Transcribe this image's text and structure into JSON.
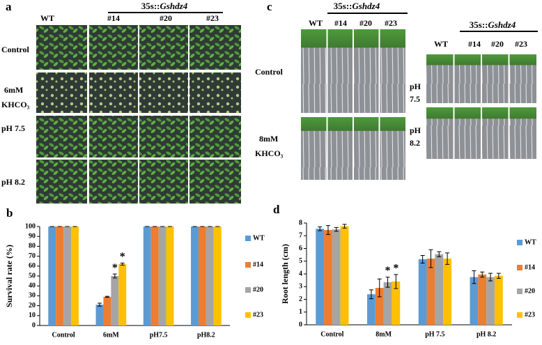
{
  "panel_a": {
    "label": "a",
    "header_prefix": "35s::",
    "header_gene": "Gshdz4",
    "columns": [
      "WT",
      "#14",
      "#20",
      "#23"
    ],
    "rows": [
      [
        "Control"
      ],
      [
        "6mM",
        "KHCO₃"
      ],
      [
        "pH 7.5"
      ],
      [
        "pH 8.2"
      ]
    ]
  },
  "panel_c": {
    "label": "c",
    "header_prefix": "35s::",
    "header_gene": "Gshdz4",
    "columns": [
      "WT",
      "#14",
      "#20",
      "#23"
    ],
    "rows": [
      [
        "Control"
      ],
      [
        "8mM",
        "KHCO₃"
      ]
    ],
    "right": {
      "header_prefix": "35s::",
      "header_gene": "Gshdz4",
      "columns": [
        "WT",
        "#14",
        "#20",
        "#23"
      ],
      "rows": [
        [
          "pH",
          "7.5"
        ],
        [
          "pH",
          "8.2"
        ]
      ]
    }
  },
  "chart_data": [
    {
      "type": "bar",
      "panel_label": "b",
      "y_label": "Survival rate (%)",
      "categories": [
        "Control",
        "6mM",
        "pH7.5",
        "pH8.2"
      ],
      "series": [
        {
          "name": "WT",
          "color": "#5b9bd5",
          "values": [
            100,
            21,
            100,
            100
          ],
          "errors": [
            0,
            1.5,
            0,
            0
          ]
        },
        {
          "name": "#14",
          "color": "#ed7d31",
          "values": [
            100,
            29,
            100,
            100
          ],
          "errors": [
            0,
            0.5,
            0,
            0
          ]
        },
        {
          "name": "#20",
          "color": "#a5a5a5",
          "values": [
            100,
            50,
            100,
            100
          ],
          "errors": [
            0,
            2,
            0,
            0
          ]
        },
        {
          "name": "#23",
          "color": "#ffc000",
          "values": [
            100,
            62,
            100,
            100
          ],
          "errors": [
            0,
            1,
            0,
            0
          ]
        }
      ],
      "ylim": [
        0,
        100
      ],
      "yticks": [
        0,
        10,
        20,
        30,
        40,
        50,
        60,
        70,
        80,
        90,
        100
      ],
      "annotations": [
        {
          "text": "*",
          "category": "6mM",
          "series": "#20"
        },
        {
          "text": "*",
          "category": "6mM",
          "series": "#23"
        }
      ]
    },
    {
      "type": "bar",
      "panel_label": "d",
      "y_label": "Root length (cm)",
      "categories": [
        "Control",
        "8mM",
        "pH 7.5",
        "pH 8.2"
      ],
      "series": [
        {
          "name": "WT",
          "color": "#5b9bd5",
          "values": [
            7.55,
            2.4,
            5.15,
            3.75
          ],
          "errors": [
            0.15,
            0.35,
            0.3,
            0.5
          ]
        },
        {
          "name": "#14",
          "color": "#ed7d31",
          "values": [
            7.45,
            2.9,
            5.2,
            3.95
          ],
          "errors": [
            0.35,
            0.7,
            0.7,
            0.2
          ]
        },
        {
          "name": "#20",
          "color": "#a5a5a5",
          "values": [
            7.5,
            3.35,
            5.55,
            3.75
          ],
          "errors": [
            0.15,
            0.4,
            0.2,
            0.3
          ]
        },
        {
          "name": "#23",
          "color": "#ffc000",
          "values": [
            7.75,
            3.4,
            5.2,
            3.85
          ],
          "errors": [
            0.15,
            0.55,
            0.45,
            0.2
          ]
        }
      ],
      "ylim": [
        0,
        8
      ],
      "yticks": [
        0,
        1,
        2,
        3,
        4,
        5,
        6,
        7,
        8
      ],
      "annotations": [
        {
          "text": "*",
          "category": "8mM",
          "series": "#20"
        },
        {
          "text": "*",
          "category": "8mM",
          "series": "#23"
        }
      ]
    }
  ]
}
